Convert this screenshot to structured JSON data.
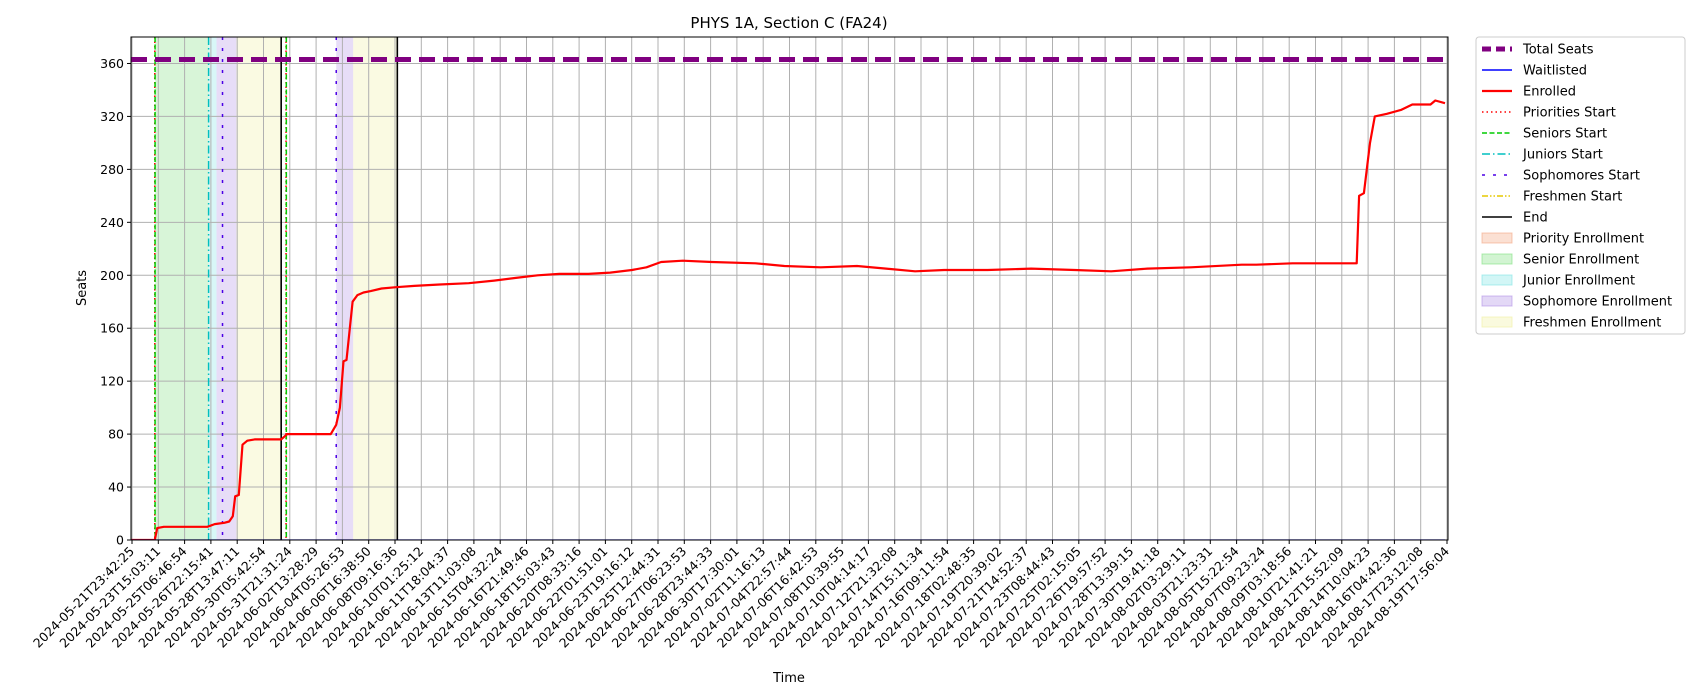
{
  "chart_data": {
    "type": "line",
    "title": "PHYS 1A, Section C (FA24)",
    "xlabel": "Time",
    "ylabel": "Seats",
    "xlim": [
      "2024-05-21T23:42:25",
      "2024-08-20T17:00:00"
    ],
    "ylim": [
      0,
      380
    ],
    "yticks": [
      0,
      40,
      80,
      120,
      160,
      200,
      240,
      280,
      320,
      360
    ],
    "xticks": [
      "2024-05-21T23:42:25",
      "2024-05-23T15:03:11",
      "2024-05-25T06:46:54",
      "2024-05-26T22:15:41",
      "2024-05-28T13:47:11",
      "2024-05-30T05:42:54",
      "2024-05-31T21:31:24",
      "2024-06-02T13:28:29",
      "2024-06-04T05:26:53",
      "2024-06-06T16:38:50",
      "2024-06-08T09:16:36",
      "2024-06-10T01:25:12",
      "2024-06-11T18:04:37",
      "2024-06-13T11:03:08",
      "2024-06-15T04:32:24",
      "2024-06-16T21:49:46",
      "2024-06-18T15:03:43",
      "2024-06-20T08:33:16",
      "2024-06-22T01:51:01",
      "2024-06-23T19:16:12",
      "2024-06-25T12:44:31",
      "2024-06-27T06:23:53",
      "2024-06-28T23:44:33",
      "2024-06-30T17:30:01",
      "2024-07-02T11:16:13",
      "2024-07-04T22:57:44",
      "2024-07-06T16:42:53",
      "2024-07-08T10:39:55",
      "2024-07-10T04:14:17",
      "2024-07-12T21:32:08",
      "2024-07-14T15:11:34",
      "2024-07-16T09:11:54",
      "2024-07-18T02:48:35",
      "2024-07-19T20:39:02",
      "2024-07-21T14:52:37",
      "2024-07-23T08:44:43",
      "2024-07-25T02:15:05",
      "2024-07-26T19:57:52",
      "2024-07-28T13:39:15",
      "2024-07-30T19:41:18",
      "2024-08-02T03:29:11",
      "2024-08-03T21:23:31",
      "2024-08-05T15:22:54",
      "2024-08-07T09:23:24",
      "2024-08-09T03:18:56",
      "2024-08-10T21:41:21",
      "2024-08-12T15:52:09",
      "2024-08-14T10:04:23",
      "2024-08-16T04:42:36",
      "2024-08-17T23:12:08",
      "2024-08-19T17:56:04"
    ],
    "grid": true,
    "legend_position": "outside right, top",
    "legend": [
      {
        "label": "Total Seats",
        "color": "#800080",
        "style": "dashed-thick"
      },
      {
        "label": "Waitlisted",
        "color": "#0000ff",
        "style": "solid"
      },
      {
        "label": "Enrolled",
        "color": "#ff0000",
        "style": "solid-thick"
      },
      {
        "label": "Priorities Start",
        "color": "#ff0000",
        "style": "dotted"
      },
      {
        "label": "Seniors Start",
        "color": "#00cc00",
        "style": "dashed"
      },
      {
        "label": "Juniors Start",
        "color": "#00bfbf",
        "style": "dashdot"
      },
      {
        "label": "Sophomores Start",
        "color": "#4b00e6",
        "style": "loosedash"
      },
      {
        "label": "Freshmen Start",
        "color": "#e6c800",
        "style": "dashdotdot"
      },
      {
        "label": "End",
        "color": "#000000",
        "style": "solid"
      },
      {
        "label": "Priority Enrollment",
        "color": "#f4a582",
        "style": "patch"
      },
      {
        "label": "Senior Enrollment",
        "color": "#7fdf7f",
        "style": "patch"
      },
      {
        "label": "Junior Enrollment",
        "color": "#7fe5e5",
        "style": "patch"
      },
      {
        "label": "Sophomore Enrollment",
        "color": "#b08fe6",
        "style": "patch"
      },
      {
        "label": "Freshmen Enrollment",
        "color": "#f0f0a0",
        "style": "patch"
      }
    ],
    "total_seats": 363,
    "bands": [
      {
        "kind": "Senior Enrollment",
        "from": "2024-05-23T15:30:00",
        "to": "2024-05-27T08:00:00",
        "color": "#7fdf7f"
      },
      {
        "kind": "Junior Enrollment",
        "from": "2024-05-27T08:00:00",
        "to": "2024-05-27T21:00:00",
        "color": "#7fe5e5"
      },
      {
        "kind": "Sophomore Enrollment",
        "from": "2024-05-27T21:00:00",
        "to": "2024-05-29T06:00:00",
        "color": "#b08fe6"
      },
      {
        "kind": "Freshmen Enrollment",
        "from": "2024-05-29T06:00:00",
        "to": "2024-06-01T08:00:00",
        "color": "#f0f0a0"
      },
      {
        "kind": "Sophomore Enrollment",
        "from": "2024-06-05T03:00:00",
        "to": "2024-06-06T07:00:00",
        "color": "#b08fe6"
      },
      {
        "kind": "Freshmen Enrollment",
        "from": "2024-06-06T07:00:00",
        "to": "2024-06-09T08:00:00",
        "color": "#f0f0a0"
      }
    ],
    "vlines": [
      {
        "kind": "Priorities Start",
        "x": "2024-05-23T15:00:00",
        "color": "#ff0000",
        "style": "dotted"
      },
      {
        "kind": "Seniors Start",
        "x": "2024-05-23T15:30:00",
        "color": "#00cc00",
        "style": "dashed"
      },
      {
        "kind": "Juniors Start",
        "x": "2024-05-27T08:00:00",
        "color": "#00bfbf",
        "style": "dashdot"
      },
      {
        "kind": "Sophomores Start",
        "x": "2024-05-28T07:00:00",
        "color": "#4b00e6",
        "style": "loosedash"
      },
      {
        "kind": "End",
        "x": "2024-06-01T08:00:00",
        "color": "#000000",
        "style": "solid"
      },
      {
        "kind": "Priorities Start",
        "x": "2024-06-01T16:00:00",
        "color": "#ff0000",
        "style": "dotted"
      },
      {
        "kind": "Seniors Start",
        "x": "2024-06-01T16:30:00",
        "color": "#00cc00",
        "style": "dashed"
      },
      {
        "kind": "Sophomores Start",
        "x": "2024-06-05T03:00:00",
        "color": "#4b00e6",
        "style": "loosedash"
      },
      {
        "kind": "End",
        "x": "2024-06-09T08:00:00",
        "color": "#000000",
        "style": "solid"
      }
    ],
    "series": [
      {
        "name": "Enrolled",
        "color": "#ff0000",
        "x": [
          "2024-05-21T23:42:25",
          "2024-05-23T15:00:00",
          "2024-05-23T19:00:00",
          "2024-05-24T06:00:00",
          "2024-05-25T12:00:00",
          "2024-05-26T18:00:00",
          "2024-05-27T06:00:00",
          "2024-05-27T18:00:00",
          "2024-05-28T10:00:00",
          "2024-05-28T18:00:00",
          "2024-05-29T00:00:00",
          "2024-05-29T04:00:00",
          "2024-05-29T10:00:00",
          "2024-05-29T16:00:00",
          "2024-05-30T00:00:00",
          "2024-05-30T12:00:00",
          "2024-05-31T06:00:00",
          "2024-06-01T08:00:00",
          "2024-06-01T18:00:00",
          "2024-06-02T12:00:00",
          "2024-06-04T05:00:00",
          "2024-06-04T18:00:00",
          "2024-06-05T03:00:00",
          "2024-06-05T09:00:00",
          "2024-06-05T15:00:00",
          "2024-06-05T20:00:00",
          "2024-06-06T06:00:00",
          "2024-06-06T14:00:00",
          "2024-06-07T00:00:00",
          "2024-06-07T12:00:00",
          "2024-06-08T06:00:00",
          "2024-06-09T06:00:00",
          "2024-06-10T12:00:00",
          "2024-06-12T06:00:00",
          "2024-06-14T06:00:00",
          "2024-06-16T00:00:00",
          "2024-06-17T12:00:00",
          "2024-06-19T00:00:00",
          "2024-06-20T12:00:00",
          "2024-06-22T12:00:00",
          "2024-06-24T00:00:00",
          "2024-06-25T12:00:00",
          "2024-06-26T12:00:00",
          "2024-06-27T12:00:00",
          "2024-06-29T00:00:00",
          "2024-07-01T00:00:00",
          "2024-07-04T00:00:00",
          "2024-07-06T00:00:00",
          "2024-07-08T12:00:00",
          "2024-07-11T00:00:00",
          "2024-07-13T00:00:00",
          "2024-07-15T00:00:00",
          "2024-07-17T00:00:00",
          "2024-07-20T00:00:00",
          "2024-07-23T00:00:00",
          "2024-07-26T00:00:00",
          "2024-07-28T12:00:00",
          "2024-07-31T00:00:00",
          "2024-08-03T00:00:00",
          "2024-08-06T12:00:00",
          "2024-08-07T12:00:00",
          "2024-08-10T00:00:00",
          "2024-08-13T00:00:00",
          "2024-08-14T10:00:00",
          "2024-08-14T14:00:00",
          "2024-08-14T22:00:00",
          "2024-08-15T08:00:00",
          "2024-08-15T16:00:00",
          "2024-08-16T12:00:00",
          "2024-08-17T12:00:00",
          "2024-08-18T06:00:00",
          "2024-08-19T12:00:00",
          "2024-08-19T20:00:00",
          "2024-08-20T12:00:00"
        ],
        "values": [
          0,
          0,
          9,
          10,
          10,
          10,
          10,
          12,
          13,
          14,
          18,
          33,
          34,
          72,
          75,
          76,
          76,
          76,
          80,
          80,
          80,
          80,
          87,
          100,
          135,
          136,
          180,
          185,
          187,
          188,
          190,
          191,
          192,
          193,
          194,
          196,
          198,
          200,
          201,
          201,
          202,
          204,
          206,
          210,
          211,
          210,
          209,
          207,
          206,
          207,
          205,
          203,
          204,
          204,
          205,
          204,
          203,
          205,
          206,
          208,
          208,
          209,
          209,
          209,
          260,
          262,
          300,
          320,
          322,
          325,
          329,
          329,
          332,
          330
        ]
      },
      {
        "name": "Waitlisted",
        "color": "#0000ff",
        "x": [
          "2024-05-21T23:42:25",
          "2024-08-20T12:00:00"
        ],
        "values": [
          0,
          0
        ]
      }
    ]
  }
}
